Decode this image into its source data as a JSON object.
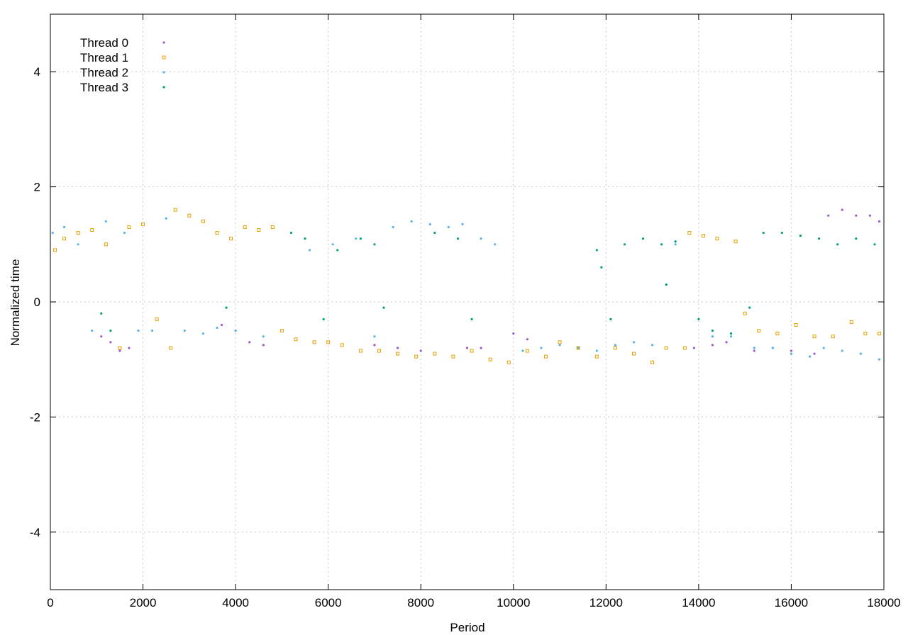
{
  "chart_data": {
    "type": "scatter",
    "title": "",
    "xlabel": "Period",
    "ylabel": "Normalized time",
    "xlim": [
      0,
      18000
    ],
    "ylim": [
      -5,
      5
    ],
    "x_ticks": [
      0,
      2000,
      4000,
      6000,
      8000,
      10000,
      12000,
      14000,
      16000,
      18000
    ],
    "y_ticks": [
      -4,
      -2,
      0,
      2,
      4
    ],
    "grid": true,
    "legend_position": "top-left",
    "series": [
      {
        "name": "Thread 0",
        "color": "#9b59d0",
        "marker": "dot",
        "points": [
          [
            1100,
            -0.6
          ],
          [
            1300,
            -0.7
          ],
          [
            1500,
            -0.85
          ],
          [
            1700,
            -0.8
          ],
          [
            3700,
            -0.4
          ],
          [
            4000,
            -0.5
          ],
          [
            4300,
            -0.7
          ],
          [
            4600,
            -0.75
          ],
          [
            7000,
            -0.75
          ],
          [
            7500,
            -0.8
          ],
          [
            8000,
            -0.85
          ],
          [
            9000,
            -0.8
          ],
          [
            9300,
            -0.8
          ],
          [
            10000,
            -0.55
          ],
          [
            10300,
            -0.65
          ],
          [
            13900,
            -0.8
          ],
          [
            14300,
            -0.75
          ],
          [
            14600,
            -0.7
          ],
          [
            15200,
            -0.85
          ],
          [
            15600,
            -0.8
          ],
          [
            16000,
            -0.85
          ],
          [
            16500,
            -0.9
          ],
          [
            16800,
            1.5
          ],
          [
            17100,
            1.6
          ],
          [
            17400,
            1.5
          ],
          [
            17700,
            1.5
          ],
          [
            17900,
            1.4
          ]
        ]
      },
      {
        "name": "Thread 1",
        "color": "#e69f00",
        "marker": "square",
        "points": [
          [
            100,
            0.9
          ],
          [
            300,
            1.1
          ],
          [
            600,
            1.2
          ],
          [
            900,
            1.25
          ],
          [
            1200,
            1.0
          ],
          [
            1500,
            -0.8
          ],
          [
            1700,
            1.3
          ],
          [
            2000,
            1.35
          ],
          [
            2300,
            -0.3
          ],
          [
            2600,
            -0.8
          ],
          [
            2700,
            1.6
          ],
          [
            3000,
            1.5
          ],
          [
            3300,
            1.4
          ],
          [
            3600,
            1.2
          ],
          [
            3900,
            1.1
          ],
          [
            4200,
            1.3
          ],
          [
            4500,
            1.25
          ],
          [
            4800,
            1.3
          ],
          [
            5000,
            -0.5
          ],
          [
            5300,
            -0.65
          ],
          [
            5700,
            -0.7
          ],
          [
            6000,
            -0.7
          ],
          [
            6300,
            -0.75
          ],
          [
            6700,
            -0.85
          ],
          [
            7100,
            -0.85
          ],
          [
            7500,
            -0.9
          ],
          [
            7900,
            -0.95
          ],
          [
            8300,
            -0.9
          ],
          [
            8700,
            -0.95
          ],
          [
            9100,
            -0.85
          ],
          [
            9500,
            -1.0
          ],
          [
            9900,
            -1.05
          ],
          [
            10300,
            -0.85
          ],
          [
            10700,
            -0.95
          ],
          [
            11000,
            -0.7
          ],
          [
            11400,
            -0.8
          ],
          [
            11800,
            -0.95
          ],
          [
            12200,
            -0.8
          ],
          [
            12600,
            -0.9
          ],
          [
            13000,
            -1.05
          ],
          [
            13300,
            -0.8
          ],
          [
            13700,
            -0.8
          ],
          [
            13800,
            1.2
          ],
          [
            14100,
            1.15
          ],
          [
            14400,
            1.1
          ],
          [
            14800,
            1.05
          ],
          [
            15000,
            -0.2
          ],
          [
            15300,
            -0.5
          ],
          [
            15700,
            -0.55
          ],
          [
            16100,
            -0.4
          ],
          [
            16500,
            -0.6
          ],
          [
            16900,
            -0.6
          ],
          [
            17300,
            -0.35
          ],
          [
            17600,
            -0.55
          ],
          [
            17900,
            -0.55
          ]
        ]
      },
      {
        "name": "Thread 2",
        "color": "#56b4e9",
        "marker": "dot",
        "points": [
          [
            50,
            1.2
          ],
          [
            300,
            1.3
          ],
          [
            600,
            1.0
          ],
          [
            900,
            -0.5
          ],
          [
            1200,
            1.4
          ],
          [
            1600,
            1.2
          ],
          [
            1900,
            -0.5
          ],
          [
            2200,
            -0.5
          ],
          [
            2500,
            1.45
          ],
          [
            2900,
            -0.5
          ],
          [
            3300,
            -0.55
          ],
          [
            3600,
            -0.45
          ],
          [
            4000,
            -0.5
          ],
          [
            4600,
            -0.6
          ],
          [
            5600,
            0.9
          ],
          [
            6100,
            1.0
          ],
          [
            6600,
            1.1
          ],
          [
            7000,
            -0.6
          ],
          [
            7400,
            1.3
          ],
          [
            7800,
            1.4
          ],
          [
            8200,
            1.35
          ],
          [
            8600,
            1.3
          ],
          [
            8900,
            1.35
          ],
          [
            9300,
            1.1
          ],
          [
            9600,
            1.0
          ],
          [
            10200,
            -0.85
          ],
          [
            10600,
            -0.8
          ],
          [
            11000,
            -0.75
          ],
          [
            11400,
            -0.8
          ],
          [
            11800,
            -0.85
          ],
          [
            12200,
            -0.75
          ],
          [
            12600,
            -0.7
          ],
          [
            13000,
            -0.75
          ],
          [
            13500,
            1.0
          ],
          [
            14300,
            -0.6
          ],
          [
            14700,
            -0.6
          ],
          [
            15200,
            -0.8
          ],
          [
            15600,
            -0.8
          ],
          [
            16000,
            -0.9
          ],
          [
            16400,
            -0.95
          ],
          [
            16700,
            -0.8
          ],
          [
            17100,
            -0.85
          ],
          [
            17500,
            -0.9
          ],
          [
            17900,
            -1.0
          ]
        ]
      },
      {
        "name": "Thread 3",
        "color": "#009e73",
        "marker": "dot",
        "points": [
          [
            1100,
            -0.2
          ],
          [
            1300,
            -0.5
          ],
          [
            3800,
            -0.1
          ],
          [
            5200,
            1.2
          ],
          [
            5500,
            1.1
          ],
          [
            5900,
            -0.3
          ],
          [
            6200,
            0.9
          ],
          [
            6700,
            1.1
          ],
          [
            7000,
            1.0
          ],
          [
            7200,
            -0.1
          ],
          [
            8300,
            1.2
          ],
          [
            8800,
            1.1
          ],
          [
            9100,
            -0.3
          ],
          [
            11800,
            0.9
          ],
          [
            11900,
            0.6
          ],
          [
            12100,
            -0.3
          ],
          [
            12400,
            1.0
          ],
          [
            12800,
            1.1
          ],
          [
            13200,
            1.0
          ],
          [
            13300,
            0.3
          ],
          [
            13500,
            1.05
          ],
          [
            14000,
            -0.3
          ],
          [
            14300,
            -0.5
          ],
          [
            14700,
            -0.55
          ],
          [
            15100,
            -0.1
          ],
          [
            15400,
            1.2
          ],
          [
            15800,
            1.2
          ],
          [
            16200,
            1.15
          ],
          [
            16600,
            1.1
          ],
          [
            17000,
            1.0
          ],
          [
            17400,
            1.1
          ],
          [
            17800,
            1.0
          ]
        ]
      }
    ]
  }
}
